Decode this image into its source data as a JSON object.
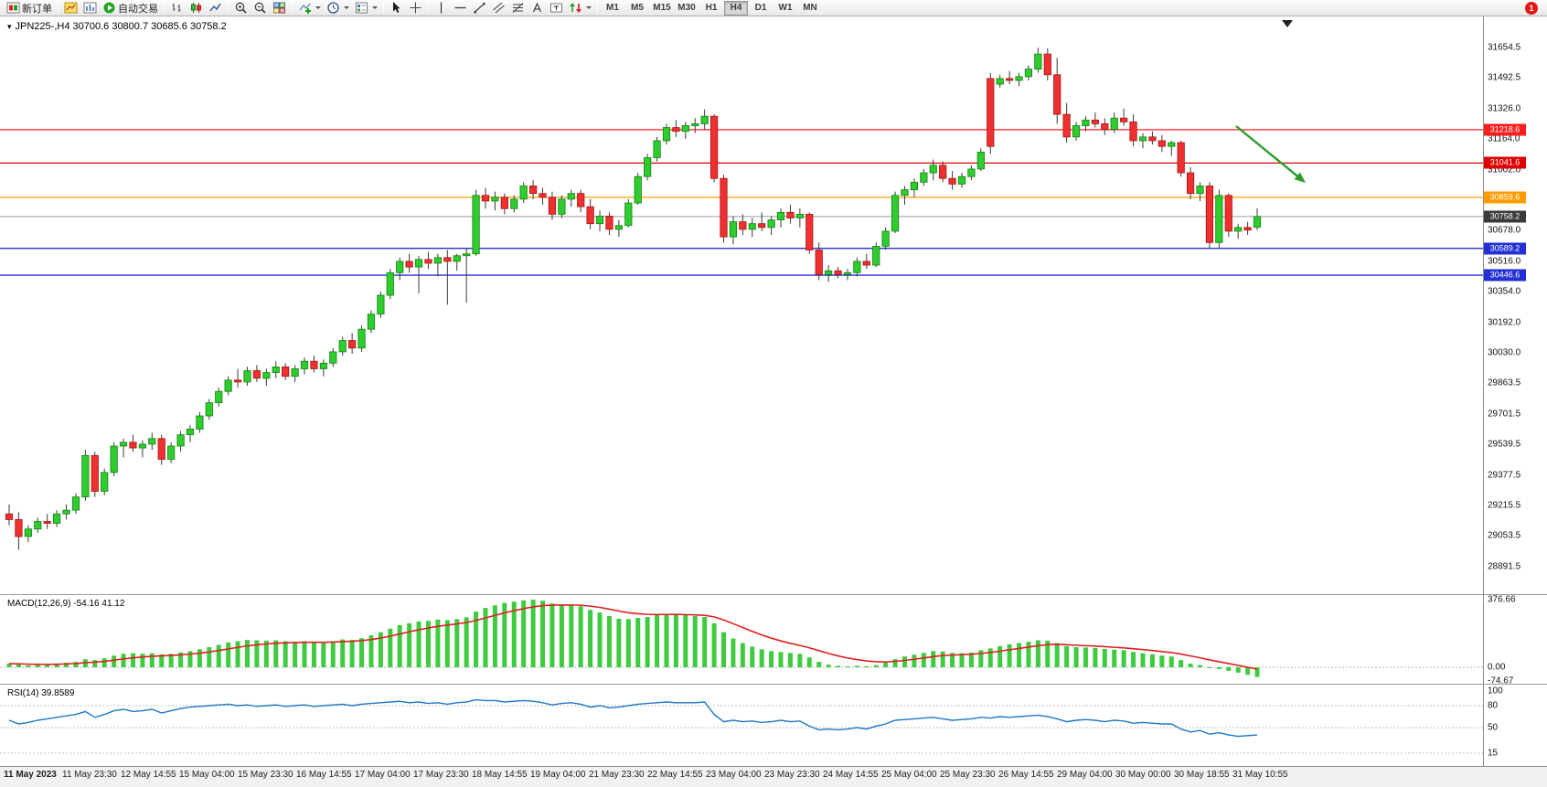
{
  "window": {
    "badge_count": "1"
  },
  "toolbar": {
    "new_order_label": "新订单",
    "autotrading_label": "自动交易",
    "timeframes": [
      "M1",
      "M5",
      "M15",
      "M30",
      "H1",
      "H4",
      "D1",
      "W1",
      "MN"
    ],
    "active_timeframe": "H4",
    "icons": [
      "new-order-icon",
      "charts-icon",
      "profile-icon",
      "autotrading-icon",
      "bar-chart-icon",
      "candlestick-chart-icon",
      "line-chart-icon",
      "zoom-in-icon",
      "zoom-out-icon",
      "tile-windows-icon",
      "indicators-icon",
      "periods-icon",
      "templates-icon",
      "cursor-icon",
      "crosshair-icon",
      "vertical-line-icon",
      "horizontal-line-icon",
      "trendline-icon",
      "channel-icon",
      "fibonacci-icon",
      "text-icon",
      "label-icon",
      "arrows-icon",
      "chevron-down-icon"
    ]
  },
  "chart": {
    "title": "JPN225-,H4 30700.6 30800.7 30685.6 30758.2",
    "symbol": "JPN225-",
    "period": "H4",
    "ohlc": {
      "open": "30700.6",
      "high": "30800.7",
      "low": "30685.6",
      "close": "30758.2"
    }
  },
  "macd": {
    "label": "MACD(12,26,9) -54.16 41.12",
    "scale": [
      "376.66",
      "0.00",
      "-74.67"
    ]
  },
  "rsi": {
    "label": "RSI(14) 39.8589",
    "scale": [
      "100",
      "80",
      "50",
      "15"
    ]
  },
  "chart_data": {
    "type": "candlestick",
    "symbol": "JPN225-",
    "timeframe": "H4",
    "colors": {
      "bull": "#2ECC2E",
      "bull_edge": "#128312",
      "bear": "#F03030",
      "bear_edge": "#A51212",
      "wick": "#3a3a3a",
      "macd_hist": "#3FCB3F",
      "macd_signal": "#E02020",
      "rsi_line": "#1E78C8",
      "arrow": "#2E9B2E",
      "current_line": "#9a9a9a"
    },
    "price_axis_labels": [
      "31654.5",
      "31492.5",
      "31326.0",
      "31164.0",
      "31002.0",
      "30840.0",
      "30678.0",
      "30516.0",
      "30354.0",
      "30192.0",
      "30030.0",
      "29863.5",
      "29701.5",
      "29539.5",
      "29377.5",
      "29215.5",
      "29053.5",
      "28891.5"
    ],
    "time_axis_labels": [
      "11 May 2023",
      "11 May 23:30",
      "12 May 14:55",
      "15 May 04:00",
      "15 May 23:30",
      "16 May 14:55",
      "17 May 04:00",
      "17 May 23:30",
      "18 May 14:55",
      "19 May 04:00",
      "21 May 23:30",
      "22 May 14:55",
      "23 May 04:00",
      "23 May 23:30",
      "24 May 14:55",
      "25 May 04:00",
      "25 May 23:30",
      "26 May 14:55",
      "29 May 04:00",
      "30 May 00:00",
      "30 May 18:55",
      "31 May 10:55"
    ],
    "hlines": [
      {
        "price": 31218.6,
        "label": "31218.6",
        "color": "#FF1E1E"
      },
      {
        "price": 31041.6,
        "label": "31041.6",
        "color": "#DE0000"
      },
      {
        "price": 30859.6,
        "label": "30859.6",
        "color": "#FF9C00"
      },
      {
        "price": 30589.2,
        "label": "30589.2",
        "color": "#2330D6"
      },
      {
        "price": 30446.6,
        "label": "30446.6",
        "color": "#2330D6"
      }
    ],
    "current_price": {
      "price": 30758.2,
      "label": "30758.2",
      "color": "#3A3A3A"
    },
    "annotation_arrow": {
      "from": [
        1352,
        138
      ],
      "to": [
        1428,
        200
      ],
      "color": "#2E9B2E"
    },
    "candles": [
      [
        29180,
        29230,
        29120,
        29150
      ],
      [
        29150,
        29190,
        28990,
        29060
      ],
      [
        29060,
        29120,
        29030,
        29100
      ],
      [
        29100,
        29160,
        29080,
        29140
      ],
      [
        29140,
        29180,
        29100,
        29130
      ],
      [
        29130,
        29200,
        29110,
        29180
      ],
      [
        29180,
        29230,
        29150,
        29200
      ],
      [
        29200,
        29290,
        29180,
        29270
      ],
      [
        29270,
        29520,
        29250,
        29490
      ],
      [
        29490,
        29510,
        29270,
        29300
      ],
      [
        29300,
        29420,
        29280,
        29400
      ],
      [
        29400,
        29560,
        29380,
        29540
      ],
      [
        29540,
        29580,
        29480,
        29560
      ],
      [
        29560,
        29600,
        29510,
        29530
      ],
      [
        29530,
        29570,
        29480,
        29550
      ],
      [
        29550,
        29610,
        29520,
        29580
      ],
      [
        29580,
        29600,
        29440,
        29470
      ],
      [
        29470,
        29560,
        29450,
        29540
      ],
      [
        29540,
        29620,
        29510,
        29600
      ],
      [
        29600,
        29650,
        29560,
        29630
      ],
      [
        29630,
        29720,
        29610,
        29700
      ],
      [
        29700,
        29790,
        29680,
        29770
      ],
      [
        29770,
        29850,
        29750,
        29830
      ],
      [
        29830,
        29910,
        29810,
        29890
      ],
      [
        29890,
        29950,
        29850,
        29880
      ],
      [
        29880,
        29960,
        29860,
        29940
      ],
      [
        29940,
        29970,
        29880,
        29900
      ],
      [
        29900,
        29950,
        29860,
        29930
      ],
      [
        29930,
        29990,
        29900,
        29960
      ],
      [
        29960,
        29980,
        29890,
        29910
      ],
      [
        29910,
        29970,
        29880,
        29950
      ],
      [
        29950,
        30010,
        29920,
        29990
      ],
      [
        29990,
        30020,
        29930,
        29950
      ],
      [
        29950,
        30000,
        29910,
        29980
      ],
      [
        29980,
        30060,
        29960,
        30040
      ],
      [
        30040,
        30120,
        30020,
        30100
      ],
      [
        30100,
        30140,
        30030,
        30060
      ],
      [
        30060,
        30180,
        30040,
        30160
      ],
      [
        30160,
        30260,
        30140,
        30240
      ],
      [
        30240,
        30360,
        30220,
        30340
      ],
      [
        30340,
        30480,
        30320,
        30460
      ],
      [
        30460,
        30540,
        30420,
        30520
      ],
      [
        30520,
        30560,
        30460,
        30490
      ],
      [
        30490,
        30550,
        30350,
        30530
      ],
      [
        30530,
        30570,
        30480,
        30510
      ],
      [
        30510,
        30560,
        30440,
        30540
      ],
      [
        30540,
        30580,
        30290,
        30520
      ],
      [
        30520,
        30560,
        30470,
        30550
      ],
      [
        30550,
        30590,
        30300,
        30560
      ],
      [
        30560,
        30900,
        30550,
        30870
      ],
      [
        30870,
        30910,
        30800,
        30840
      ],
      [
        30840,
        30890,
        30790,
        30860
      ],
      [
        30860,
        30880,
        30770,
        30800
      ],
      [
        30800,
        30870,
        30780,
        30850
      ],
      [
        30850,
        30940,
        30830,
        30920
      ],
      [
        30920,
        30950,
        30850,
        30880
      ],
      [
        30880,
        30910,
        30820,
        30860
      ],
      [
        30860,
        30890,
        30740,
        30770
      ],
      [
        30770,
        30870,
        30750,
        30850
      ],
      [
        30850,
        30900,
        30810,
        30880
      ],
      [
        30880,
        30900,
        30780,
        30810
      ],
      [
        30810,
        30850,
        30690,
        30720
      ],
      [
        30720,
        30790,
        30680,
        30760
      ],
      [
        30760,
        30780,
        30660,
        30690
      ],
      [
        30690,
        30740,
        30650,
        30710
      ],
      [
        30710,
        30850,
        30700,
        30830
      ],
      [
        30830,
        30990,
        30820,
        30970
      ],
      [
        30970,
        31090,
        30950,
        31070
      ],
      [
        31070,
        31180,
        31050,
        31160
      ],
      [
        31160,
        31250,
        31140,
        31230
      ],
      [
        31230,
        31270,
        31180,
        31210
      ],
      [
        31210,
        31260,
        31170,
        31240
      ],
      [
        31240,
        31280,
        31200,
        31250
      ],
      [
        31250,
        31326,
        31220,
        31290
      ],
      [
        31290,
        31300,
        30940,
        30960
      ],
      [
        30960,
        30980,
        30620,
        30650
      ],
      [
        30650,
        30760,
        30610,
        30730
      ],
      [
        30730,
        30770,
        30660,
        30690
      ],
      [
        30690,
        30750,
        30650,
        30720
      ],
      [
        30720,
        30780,
        30680,
        30700
      ],
      [
        30700,
        30760,
        30660,
        30740
      ],
      [
        30740,
        30800,
        30700,
        30780
      ],
      [
        30780,
        30820,
        30720,
        30750
      ],
      [
        30750,
        30800,
        30700,
        30770
      ],
      [
        30770,
        30780,
        30560,
        30580
      ],
      [
        30580,
        30620,
        30420,
        30450
      ],
      [
        30450,
        30500,
        30410,
        30470
      ],
      [
        30470,
        30490,
        30430,
        30450
      ],
      [
        30450,
        30480,
        30420,
        30460
      ],
      [
        30460,
        30540,
        30440,
        30520
      ],
      [
        30520,
        30560,
        30480,
        30500
      ],
      [
        30500,
        30620,
        30490,
        30600
      ],
      [
        30600,
        30700,
        30580,
        30680
      ],
      [
        30680,
        30890,
        30670,
        30870
      ],
      [
        30870,
        30920,
        30820,
        30900
      ],
      [
        30900,
        30960,
        30860,
        30940
      ],
      [
        30940,
        31010,
        30920,
        30990
      ],
      [
        30990,
        31060,
        30950,
        31030
      ],
      [
        31030,
        31050,
        30940,
        30960
      ],
      [
        30960,
        31000,
        30900,
        30930
      ],
      [
        30930,
        30990,
        30910,
        30970
      ],
      [
        30970,
        31030,
        30950,
        31010
      ],
      [
        31010,
        31120,
        31000,
        31100
      ],
      [
        31490,
        31520,
        31090,
        31130
      ],
      [
        31460,
        31510,
        31440,
        31490
      ],
      [
        31490,
        31530,
        31460,
        31480
      ],
      [
        31480,
        31520,
        31450,
        31500
      ],
      [
        31500,
        31560,
        31480,
        31540
      ],
      [
        31540,
        31654,
        31520,
        31620
      ],
      [
        31620,
        31650,
        31480,
        31510
      ],
      [
        31510,
        31600,
        31250,
        31300
      ],
      [
        31300,
        31360,
        31150,
        31180
      ],
      [
        31180,
        31260,
        31160,
        31240
      ],
      [
        31240,
        31290,
        31210,
        31270
      ],
      [
        31270,
        31310,
        31230,
        31250
      ],
      [
        31250,
        31280,
        31190,
        31220
      ],
      [
        31220,
        31310,
        31200,
        31280
      ],
      [
        31280,
        31330,
        31240,
        31260
      ],
      [
        31260,
        31300,
        31130,
        31160
      ],
      [
        31160,
        31200,
        31120,
        31180
      ],
      [
        31180,
        31210,
        31140,
        31160
      ],
      [
        31160,
        31190,
        31100,
        31130
      ],
      [
        31130,
        31160,
        31080,
        31150
      ],
      [
        31150,
        31160,
        30970,
        30990
      ],
      [
        30990,
        31020,
        30850,
        30880
      ],
      [
        30880,
        30940,
        30840,
        30920
      ],
      [
        30920,
        30940,
        30590,
        30620
      ],
      [
        30620,
        30900,
        30590,
        30870
      ],
      [
        30870,
        30880,
        30650,
        30680
      ],
      [
        30680,
        30720,
        30640,
        30700
      ],
      [
        30700,
        30730,
        30660,
        30686
      ],
      [
        30700.6,
        30800.7,
        30685.6,
        30758.2
      ]
    ],
    "macd": {
      "hist_final": -54.16,
      "signal_final": 41.12,
      "values": [
        20,
        15,
        10,
        12,
        15,
        20,
        25,
        30,
        45,
        40,
        50,
        65,
        75,
        78,
        75,
        78,
        72,
        75,
        82,
        90,
        100,
        112,
        125,
        138,
        145,
        152,
        150,
        148,
        150,
        145,
        142,
        145,
        140,
        138,
        145,
        155,
        152,
        162,
        178,
        195,
        215,
        235,
        245,
        255,
        258,
        265,
        262,
        268,
        278,
        310,
        330,
        345,
        358,
        365,
        372,
        376,
        370,
        355,
        350,
        348,
        340,
        320,
        305,
        285,
        270,
        268,
        275,
        280,
        290,
        295,
        295,
        290,
        285,
        280,
        245,
        195,
        160,
        135,
        115,
        100,
        90,
        85,
        80,
        75,
        55,
        30,
        15,
        8,
        5,
        8,
        6,
        12,
        25,
        45,
        60,
        70,
        80,
        90,
        88,
        80,
        78,
        82,
        95,
        105,
        118,
        128,
        135,
        142,
        150,
        148,
        135,
        118,
        112,
        110,
        108,
        102,
        98,
        95,
        85,
        78,
        72,
        65,
        60,
        40,
        20,
        12,
        -5,
        -10,
        -20,
        -30,
        -42,
        -54.16
      ]
    },
    "rsi": {
      "final": 39.8589,
      "levels": [
        80,
        50,
        15
      ],
      "values": [
        60,
        55,
        57,
        60,
        62,
        64,
        66,
        68,
        72,
        64,
        68,
        73,
        75,
        72,
        73,
        75,
        70,
        73,
        76,
        78,
        79,
        80,
        81,
        82,
        80,
        81,
        79,
        80,
        81,
        79,
        80,
        81,
        79,
        80,
        81,
        82,
        80,
        82,
        83,
        84,
        85,
        86,
        84,
        85,
        83,
        84,
        82,
        84,
        85,
        88,
        87,
        87,
        85,
        86,
        87,
        86,
        84,
        81,
        83,
        84,
        82,
        78,
        80,
        77,
        78,
        80,
        82,
        83,
        84,
        85,
        84,
        84,
        84,
        85,
        68,
        58,
        60,
        58,
        59,
        57,
        58,
        60,
        58,
        59,
        52,
        47,
        48,
        47,
        48,
        50,
        48,
        52,
        55,
        60,
        61,
        62,
        63,
        64,
        62,
        60,
        61,
        62,
        64,
        63,
        65,
        64,
        65,
        66,
        67,
        65,
        62,
        58,
        60,
        61,
        60,
        58,
        60,
        59,
        56,
        57,
        56,
        55,
        55,
        48,
        44,
        46,
        41,
        43,
        40,
        38,
        39,
        39.86
      ]
    }
  }
}
